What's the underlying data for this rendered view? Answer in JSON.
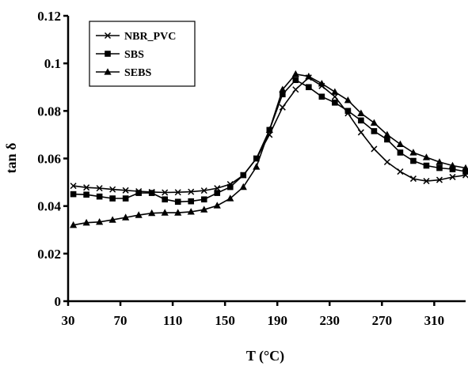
{
  "chart_data": {
    "type": "line",
    "title": "",
    "xlabel": "T (°C)",
    "ylabel": "tan δ",
    "xlim": [
      30,
      334
    ],
    "ylim": [
      0,
      0.12
    ],
    "x_ticks": [
      "30",
      "70",
      "110",
      "150",
      "190",
      "230",
      "270",
      "310"
    ],
    "y_ticks": [
      "0",
      "0.02",
      "0.04",
      "0.06",
      "0.08",
      "0.1",
      "0.12"
    ],
    "grid": false,
    "legend_position": "top-left",
    "series": [
      {
        "name": "NBR_PVC",
        "marker": "x",
        "color": "#000000",
        "x": [
          34,
          44,
          54,
          64,
          74,
          84,
          94,
          104,
          114,
          124,
          134,
          144,
          154,
          164,
          174,
          184,
          194,
          204,
          214,
          224,
          234,
          244,
          254,
          264,
          274,
          284,
          294,
          304,
          314,
          324,
          334
        ],
        "y": [
          0.0485,
          0.0478,
          0.0475,
          0.047,
          0.0466,
          0.0462,
          0.0459,
          0.0457,
          0.0458,
          0.046,
          0.0465,
          0.0475,
          0.0492,
          0.053,
          0.06,
          0.07,
          0.0815,
          0.089,
          0.094,
          0.0905,
          0.086,
          0.079,
          0.071,
          0.064,
          0.0585,
          0.0545,
          0.0515,
          0.0505,
          0.051,
          0.0522,
          0.053
        ]
      },
      {
        "name": "SBS",
        "marker": "square",
        "color": "#000000",
        "x": [
          34,
          44,
          54,
          64,
          74,
          84,
          94,
          104,
          114,
          124,
          134,
          144,
          154,
          164,
          174,
          184,
          194,
          204,
          214,
          224,
          234,
          244,
          254,
          264,
          274,
          284,
          294,
          304,
          314,
          324,
          334
        ],
        "y": [
          0.045,
          0.0448,
          0.044,
          0.0432,
          0.0432,
          0.0455,
          0.0455,
          0.0428,
          0.0418,
          0.042,
          0.0428,
          0.0455,
          0.048,
          0.053,
          0.06,
          0.072,
          0.087,
          0.093,
          0.09,
          0.086,
          0.0835,
          0.08,
          0.076,
          0.0715,
          0.068,
          0.0625,
          0.059,
          0.057,
          0.056,
          0.0555,
          0.0545
        ]
      },
      {
        "name": "SEBS",
        "marker": "triangle",
        "color": "#000000",
        "x": [
          34,
          44,
          54,
          64,
          74,
          84,
          94,
          104,
          114,
          124,
          134,
          144,
          154,
          164,
          174,
          184,
          194,
          204,
          214,
          224,
          234,
          244,
          254,
          264,
          274,
          284,
          294,
          304,
          314,
          324,
          334
        ],
        "y": [
          0.032,
          0.033,
          0.0333,
          0.0342,
          0.0352,
          0.0362,
          0.037,
          0.0372,
          0.0372,
          0.0376,
          0.0385,
          0.0402,
          0.0432,
          0.048,
          0.0565,
          0.072,
          0.089,
          0.0955,
          0.0945,
          0.0915,
          0.088,
          0.0845,
          0.079,
          0.075,
          0.07,
          0.066,
          0.0625,
          0.0605,
          0.0585,
          0.057,
          0.056
        ]
      }
    ]
  }
}
